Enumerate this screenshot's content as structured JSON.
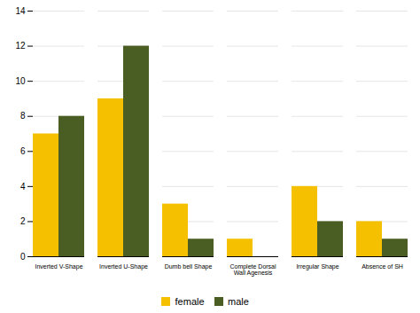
{
  "chart_data": {
    "type": "bar",
    "categories": [
      "Inverted V-Shape",
      "Inverted U-Shape",
      "Dumb bell Shape",
      "Complete Dorsal\nWall Agenesis",
      "Irregular Shape",
      "Absence of SH"
    ],
    "series": [
      {
        "name": "female",
        "color": "#F5C000",
        "values": [
          7,
          9,
          3,
          1,
          4,
          2
        ]
      },
      {
        "name": "male",
        "color": "#4A5E23",
        "values": [
          8,
          12,
          1,
          0,
          2,
          1
        ]
      }
    ],
    "ylim": [
      0,
      14
    ],
    "yticks": [
      0,
      2,
      4,
      6,
      8,
      10,
      12,
      14
    ],
    "grid": true,
    "legend": "bottom"
  }
}
